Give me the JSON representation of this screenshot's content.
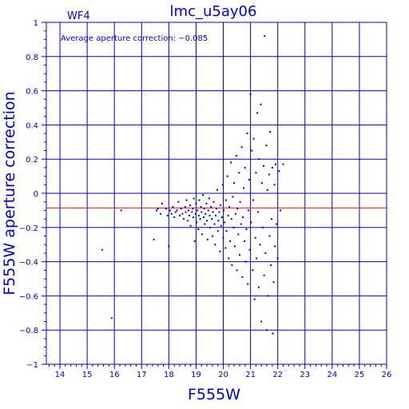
{
  "chart_data": {
    "type": "scatter",
    "title": "lmc_u5ay06",
    "panel_label": "WF4",
    "xlabel": "F555W",
    "ylabel": "F555W aperture correction",
    "annotation": "Average aperture correction: −0.085",
    "xlim": [
      13.5,
      26
    ],
    "ylim": [
      -1,
      1
    ],
    "x_ticks": [
      14,
      15,
      16,
      17,
      18,
      19,
      20,
      21,
      22,
      23,
      24,
      25,
      26
    ],
    "y_ticks": [
      -1,
      -0.8,
      -0.6,
      -0.4,
      -0.2,
      0,
      0.2,
      0.4,
      0.6,
      0.8,
      1
    ],
    "y_tick_labels": [
      "−1",
      "−0.8",
      "−0.6",
      "−0.4",
      "−0.2",
      "0",
      "0.2",
      "0.4",
      "0.6",
      "0.8",
      "1"
    ],
    "grid": true,
    "reference_line": {
      "y": -0.085,
      "color": "#ff0000"
    },
    "colors": {
      "axes": "#0000cc",
      "points": "#0000cc",
      "reference": "#ff0000"
    },
    "points": [
      [
        15.55,
        -0.33
      ],
      [
        15.9,
        -0.73
      ],
      [
        16.25,
        -0.1
      ],
      [
        17.45,
        -0.27
      ],
      [
        17.55,
        -0.1
      ],
      [
        17.6,
        -0.09
      ],
      [
        17.7,
        -0.12
      ],
      [
        17.75,
        -0.06
      ],
      [
        17.9,
        -0.09
      ],
      [
        17.95,
        -0.13
      ],
      [
        18.0,
        -0.31
      ],
      [
        18.05,
        -0.1
      ],
      [
        18.1,
        -0.12
      ],
      [
        18.15,
        -0.08
      ],
      [
        18.2,
        -0.14
      ],
      [
        18.25,
        -0.11
      ],
      [
        18.3,
        -0.1
      ],
      [
        18.35,
        -0.05
      ],
      [
        18.4,
        -0.13
      ],
      [
        18.45,
        -0.09
      ],
      [
        18.5,
        -0.12
      ],
      [
        18.55,
        -0.15
      ],
      [
        18.6,
        -0.08
      ],
      [
        18.62,
        -0.11
      ],
      [
        18.65,
        -0.04
      ],
      [
        18.7,
        -0.16
      ],
      [
        18.72,
        -0.1
      ],
      [
        18.75,
        -0.13
      ],
      [
        18.78,
        -0.07
      ],
      [
        18.8,
        -0.19
      ],
      [
        18.85,
        -0.11
      ],
      [
        18.88,
        -0.09
      ],
      [
        18.9,
        -0.14
      ],
      [
        18.92,
        -0.03
      ],
      [
        18.95,
        -0.28
      ],
      [
        18.98,
        -0.12
      ],
      [
        19.0,
        -0.06
      ],
      [
        19.02,
        -0.17
      ],
      [
        19.05,
        -0.1
      ],
      [
        19.08,
        -0.21
      ],
      [
        19.1,
        -0.13
      ],
      [
        19.12,
        -0.04
      ],
      [
        19.15,
        -0.15
      ],
      [
        19.18,
        -0.08
      ],
      [
        19.2,
        -0.11
      ],
      [
        19.22,
        -0.24
      ],
      [
        19.25,
        -0.01
      ],
      [
        19.28,
        -0.14
      ],
      [
        19.3,
        -0.09
      ],
      [
        19.32,
        -0.18
      ],
      [
        19.35,
        -0.12
      ],
      [
        19.38,
        -0.06
      ],
      [
        19.4,
        -0.16
      ],
      [
        19.42,
        -0.27
      ],
      [
        19.45,
        -0.1
      ],
      [
        19.48,
        -0.03
      ],
      [
        19.5,
        -0.13
      ],
      [
        19.52,
        -0.2
      ],
      [
        19.55,
        -0.08
      ],
      [
        19.58,
        -0.15
      ],
      [
        19.6,
        -0.25
      ],
      [
        19.62,
        -0.11
      ],
      [
        19.65,
        -0.05
      ],
      [
        19.68,
        -0.18
      ],
      [
        19.7,
        -0.3
      ],
      [
        19.72,
        -0.13
      ],
      [
        19.75,
        -0.09
      ],
      [
        19.78,
        0.02
      ],
      [
        19.8,
        -0.22
      ],
      [
        19.82,
        -0.16
      ],
      [
        19.85,
        -0.11
      ],
      [
        19.88,
        -0.34
      ],
      [
        19.9,
        -0.07
      ],
      [
        19.92,
        -0.19
      ],
      [
        19.95,
        -0.14
      ],
      [
        19.98,
        0.05
      ],
      [
        20.0,
        -0.26
      ],
      [
        20.02,
        -0.1
      ],
      [
        20.05,
        -0.17
      ],
      [
        20.08,
        -0.32
      ],
      [
        20.1,
        -0.04
      ],
      [
        20.12,
        -0.22
      ],
      [
        20.15,
        0.1
      ],
      [
        20.18,
        -0.13
      ],
      [
        20.2,
        -0.38
      ],
      [
        20.22,
        -0.08
      ],
      [
        20.25,
        -0.28
      ],
      [
        20.28,
        0.18
      ],
      [
        20.3,
        -0.15
      ],
      [
        20.32,
        -0.42
      ],
      [
        20.35,
        -0.02
      ],
      [
        20.38,
        -0.2
      ],
      [
        20.4,
        0.06
      ],
      [
        20.42,
        -0.31
      ],
      [
        20.45,
        -0.12
      ],
      [
        20.48,
        0.22
      ],
      [
        20.5,
        -0.45
      ],
      [
        20.52,
        -0.09
      ],
      [
        20.55,
        -0.24
      ],
      [
        20.58,
        0.12
      ],
      [
        20.6,
        -0.36
      ],
      [
        20.62,
        -0.05
      ],
      [
        20.65,
        -0.18
      ],
      [
        20.68,
        0.27
      ],
      [
        20.7,
        -0.49
      ],
      [
        20.72,
        -0.14
      ],
      [
        20.75,
        0.03
      ],
      [
        20.78,
        -0.28
      ],
      [
        20.8,
        0.15
      ],
      [
        20.82,
        -0.4
      ],
      [
        20.85,
        -0.21
      ],
      [
        20.88,
        0.35
      ],
      [
        20.9,
        -0.53
      ],
      [
        20.92,
        -0.1
      ],
      [
        20.95,
        0.08
      ],
      [
        20.97,
        -0.33
      ],
      [
        21.0,
        0.58
      ],
      [
        21.02,
        -0.17
      ],
      [
        21.05,
        0.25
      ],
      [
        21.08,
        -0.45
      ],
      [
        21.1,
        -0.04
      ],
      [
        21.12,
        0.32
      ],
      [
        21.15,
        -0.62
      ],
      [
        21.18,
        -0.26
      ],
      [
        21.2,
        0.12
      ],
      [
        21.22,
        -0.38
      ],
      [
        21.25,
        0.47
      ],
      [
        21.28,
        -0.11
      ],
      [
        21.3,
        -0.55
      ],
      [
        21.32,
        0.2
      ],
      [
        21.35,
        -0.3
      ],
      [
        21.38,
        0.52
      ],
      [
        21.4,
        -0.75
      ],
      [
        21.42,
        0.06
      ],
      [
        21.45,
        -0.2
      ],
      [
        21.48,
        0.16
      ],
      [
        21.5,
        -0.48
      ],
      [
        21.52,
        0.92
      ],
      [
        21.55,
        -0.35
      ],
      [
        21.58,
        0.28
      ],
      [
        21.6,
        -0.8
      ],
      [
        21.62,
        0.02
      ],
      [
        21.65,
        -0.6
      ],
      [
        21.68,
        0.11
      ],
      [
        21.7,
        -0.25
      ],
      [
        21.72,
        0.36
      ],
      [
        21.75,
        -0.42
      ],
      [
        21.78,
        -0.15
      ],
      [
        21.8,
        0.15
      ],
      [
        21.82,
        -0.82
      ],
      [
        21.85,
        -0.52
      ],
      [
        21.88,
        0.05
      ],
      [
        21.9,
        -0.31
      ],
      [
        21.92,
        0.17
      ],
      [
        21.95,
        -0.18
      ],
      [
        22.0,
        -0.38
      ],
      [
        22.05,
        0.13
      ],
      [
        22.1,
        -0.1
      ],
      [
        22.2,
        0.17
      ]
    ]
  }
}
